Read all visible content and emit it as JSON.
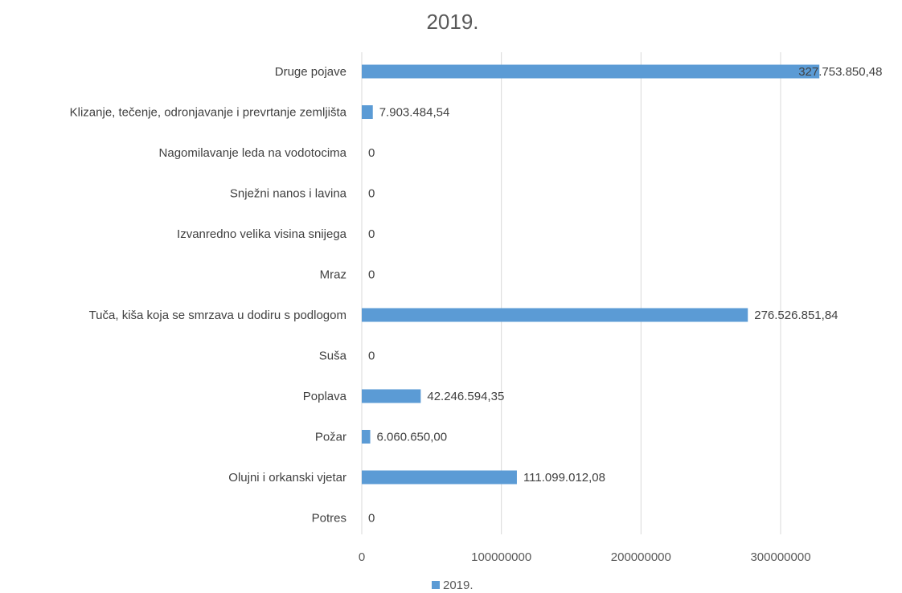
{
  "chart_data": {
    "type": "bar",
    "orientation": "horizontal",
    "title": "2019.",
    "categories": [
      "Druge pojave",
      "Klizanje, tečenje, odronjavanje i prevrtanje zemljišta",
      "Nagomilavanje leda na vodotocima",
      "Snježni nanos i lavina",
      "Izvanredno velika visina snijega",
      "Mraz",
      "Tuča, kiša koja se smrzava u dodiru s podlogom",
      "Suša",
      "Poplava",
      "Požar",
      "Olujni i orkanski vjetar",
      "Potres"
    ],
    "series": [
      {
        "name": "2019.",
        "color": "#5b9bd5",
        "values": [
          327753850.48,
          7903484.54,
          0,
          0,
          0,
          0,
          276526851.84,
          0,
          42246594.35,
          6060650.0,
          111099012.08,
          0
        ],
        "labels": [
          "327.753.850,48",
          "7.903.484,54",
          "0",
          "0",
          "0",
          "0",
          "276.526.851,84",
          "0",
          "42.246.594,35",
          "6.060.650,00",
          "111.099.012,08",
          "0"
        ]
      }
    ],
    "xlim": [
      0,
      300000000
    ],
    "xticks": [
      0,
      100000000,
      200000000,
      300000000
    ],
    "xtick_labels": [
      "0",
      "100000000",
      "200000000",
      "300000000"
    ],
    "grid": true,
    "legend_position": "bottom"
  }
}
